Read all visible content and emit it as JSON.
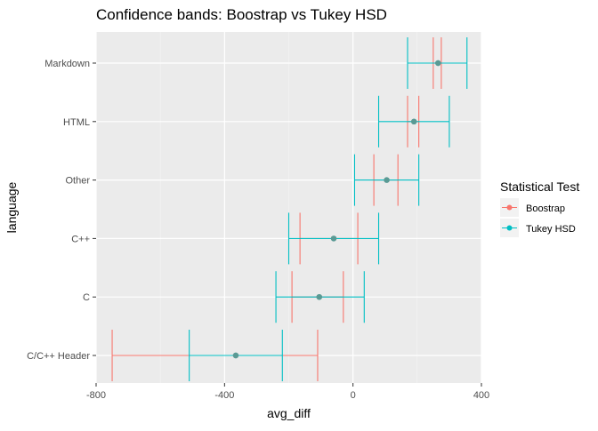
{
  "chart_data": {
    "type": "errorbar",
    "title": "Confidence bands: Boostrap vs Tukey HSD",
    "xlabel": "avg_diff",
    "ylabel": "language",
    "xlim": [
      -800,
      400
    ],
    "x_ticks": [
      -800,
      -400,
      0,
      400
    ],
    "x_tick_labels": [
      "-800",
      "-400",
      "0",
      "400"
    ],
    "categories": [
      "Markdown",
      "HTML",
      "Other",
      "C++",
      "C",
      "C/C++ Header"
    ],
    "grid": true,
    "legend": {
      "title": "Statistical Test",
      "position": "right",
      "entries": [
        "Boostrap",
        "Tukey HSD"
      ]
    },
    "series": [
      {
        "name": "Boostrap",
        "color": "#F8766D",
        "estimates": [
          265,
          190,
          105,
          -60,
          -105,
          -365
        ],
        "lower": [
          250,
          170,
          65,
          -165,
          -190,
          -750
        ],
        "upper": [
          275,
          205,
          140,
          15,
          -30,
          -110
        ]
      },
      {
        "name": "Tukey HSD",
        "color": "#00BFC4",
        "estimates": [
          265,
          190,
          105,
          -60,
          -105,
          -365
        ],
        "lower": [
          170,
          80,
          5,
          -200,
          -240,
          -510
        ],
        "upper": [
          355,
          300,
          205,
          80,
          35,
          -220
        ]
      }
    ],
    "point_color": "#5A9A94"
  }
}
